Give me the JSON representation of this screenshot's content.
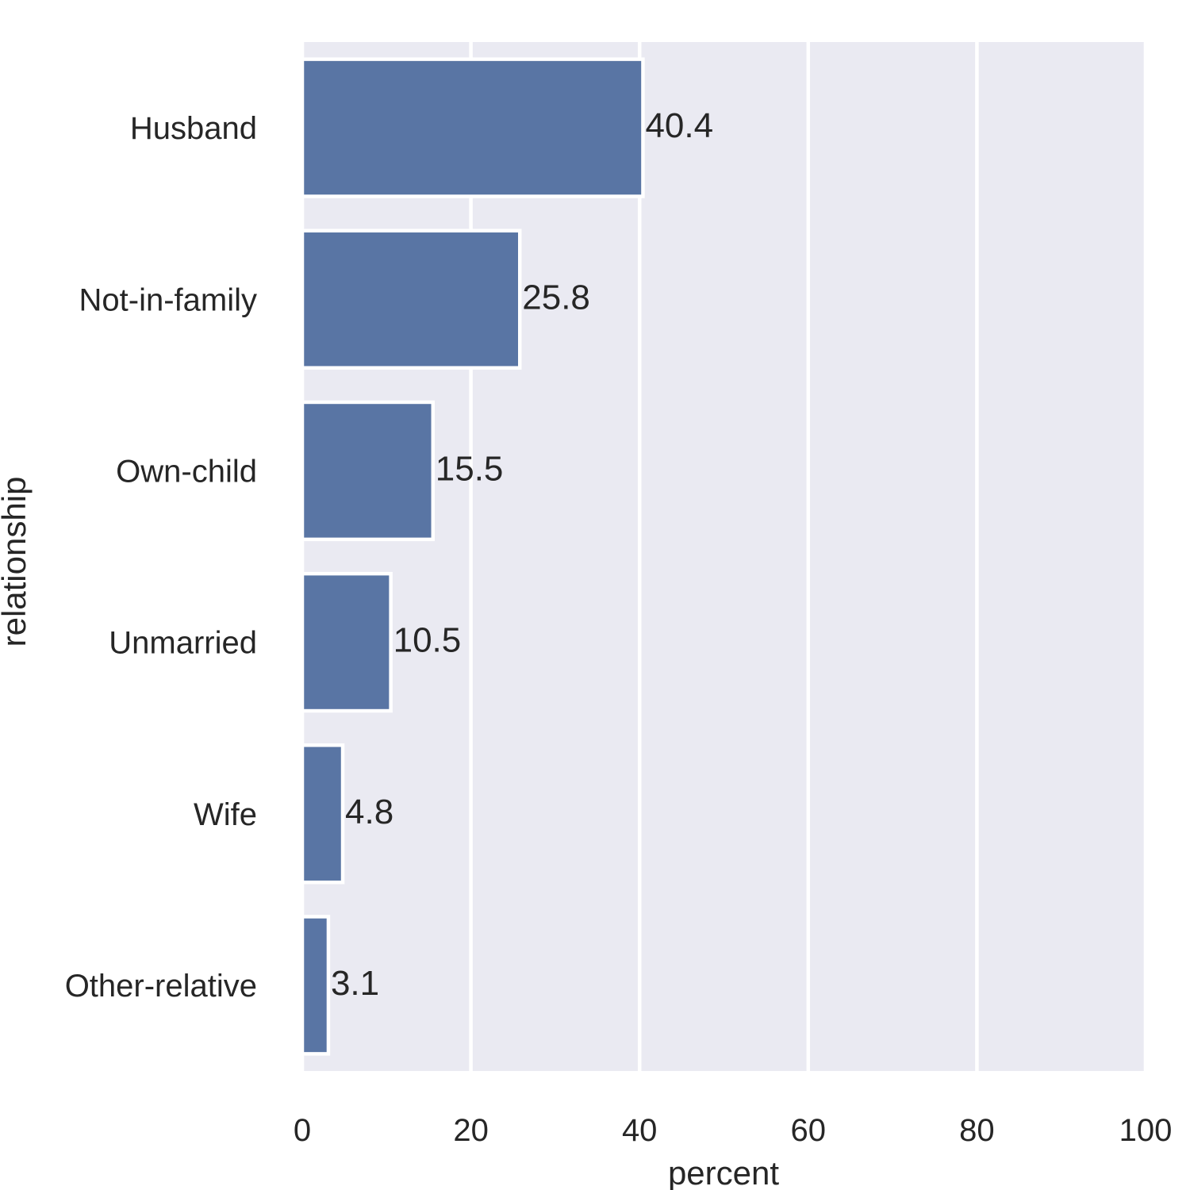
{
  "chart_data": {
    "type": "bar",
    "orientation": "horizontal",
    "categories": [
      "Husband",
      "Not-in-family",
      "Own-child",
      "Unmarried",
      "Wife",
      "Other-relative"
    ],
    "values": [
      40.4,
      25.8,
      15.5,
      10.5,
      4.8,
      3.1
    ],
    "data_labels": [
      "40.4",
      "25.8",
      "15.5",
      "10.5",
      "4.8",
      "3.1"
    ],
    "xlabel": "percent",
    "ylabel": "relationship",
    "xlim": [
      0,
      100
    ],
    "xticks": [
      0,
      20,
      40,
      60,
      80,
      100
    ],
    "xtick_labels": [
      "0",
      "20",
      "40",
      "60",
      "80",
      "100"
    ],
    "grid": "vertical",
    "colors": {
      "bar": "#5975a4",
      "background": "#eaeaf2",
      "grid": "#ffffff",
      "text": "#262626"
    }
  }
}
